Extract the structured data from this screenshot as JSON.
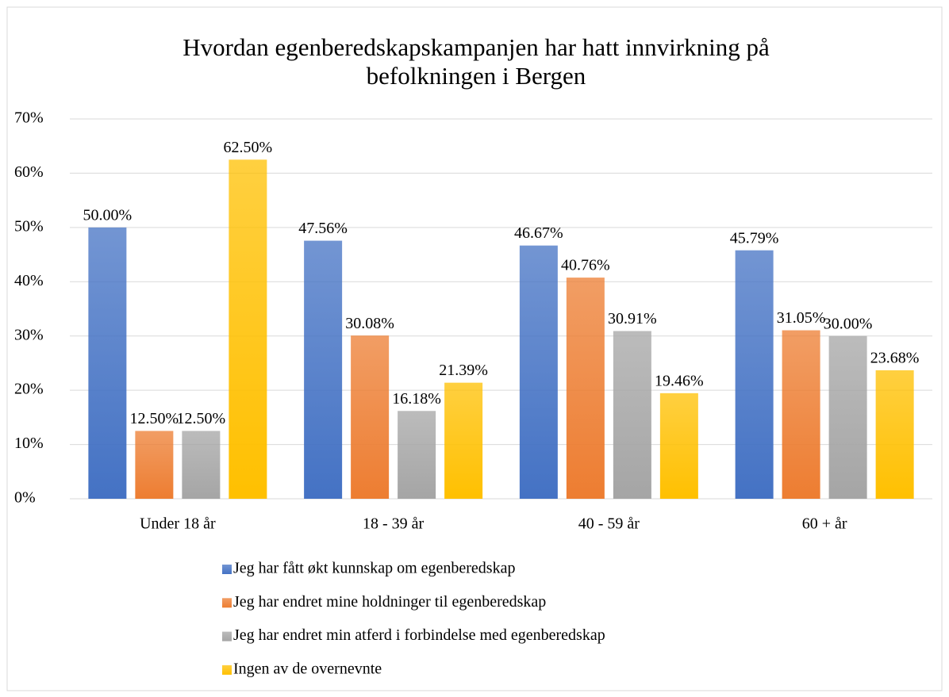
{
  "chart_data": {
    "type": "bar",
    "title": "Hvordan egenberedskapskampanjen har hatt innvirkning på befolkningen i Bergen",
    "categories": [
      "Under 18 år",
      "18 - 39 år",
      "40 - 59 år",
      "60 + år"
    ],
    "series": [
      {
        "name": "Jeg har fått økt kunnskap om egenberedskap",
        "color": "#4472c4",
        "values": [
          50.0,
          47.56,
          46.67,
          45.79
        ],
        "value_labels": [
          "50.00%",
          "47.56%",
          "46.67%",
          "45.79%"
        ]
      },
      {
        "name": "Jeg har endret mine holdninger til egenberedskap",
        "color": "#ed7d31",
        "values": [
          12.5,
          30.08,
          40.76,
          31.05
        ],
        "value_labels": [
          "12.50%",
          "30.08%",
          "40.76%",
          "31.05%"
        ]
      },
      {
        "name": "Jeg har endret min atferd i forbindelse med egenberedskap",
        "color": "#a5a5a5",
        "values": [
          12.5,
          16.18,
          30.91,
          30.0
        ],
        "value_labels": [
          "12.50%",
          "16.18%",
          "30.91%",
          "30.00%"
        ]
      },
      {
        "name": "Ingen av de overnevnte",
        "color": "#ffc000",
        "values": [
          62.5,
          21.39,
          19.46,
          23.68
        ],
        "value_labels": [
          "62.50%",
          "21.39%",
          "19.46%",
          "23.68%"
        ]
      }
    ],
    "ylim": [
      0,
      70
    ],
    "yticks": [
      {
        "value": 0,
        "label": "0%"
      },
      {
        "value": 10,
        "label": "10%"
      },
      {
        "value": 20,
        "label": "20%"
      },
      {
        "value": 30,
        "label": "30%"
      },
      {
        "value": 40,
        "label": "40%"
      },
      {
        "value": 50,
        "label": "50%"
      },
      {
        "value": 60,
        "label": "60%"
      },
      {
        "value": 70,
        "label": "70%"
      }
    ],
    "grid": true,
    "legend": "bottom"
  }
}
